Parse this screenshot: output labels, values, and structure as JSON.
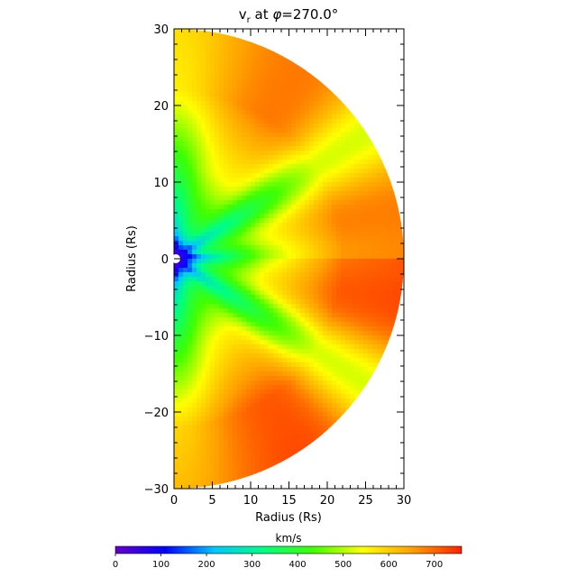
{
  "chart_data": {
    "type": "heatmap",
    "title": {
      "text": "v",
      "subscript": "r",
      "rest": " at ",
      "phi_symbol": "φ",
      "phi_value": "=270.0°"
    },
    "xlabel": "Radius (Rs)",
    "ylabel": "Radius (Rs)",
    "xlim": [
      0,
      30
    ],
    "ylim": [
      -30,
      30
    ],
    "x_ticks": [
      "0",
      "5",
      "10",
      "15",
      "20",
      "25",
      "30"
    ],
    "y_ticks": [
      "-30",
      "-20",
      "-10",
      "0",
      "10",
      "20",
      "30"
    ],
    "domain_shape": "half-disk",
    "colorbar": {
      "label": "km/s",
      "range": [
        0,
        760
      ],
      "ticks": [
        "0",
        "100",
        "200",
        "300",
        "400",
        "500",
        "600",
        "700"
      ],
      "colormap": [
        "#6600cc",
        "#0000ff",
        "#00c8ff",
        "#00ff80",
        "#40ff00",
        "#ffff00",
        "#ffa000",
        "#ff2000"
      ]
    },
    "features": [
      {
        "name": "slow-wind-core",
        "r_range": [
          1,
          3
        ],
        "value_min": 20
      },
      {
        "name": "fast-wind-lobes",
        "value_max": 750
      }
    ]
  }
}
